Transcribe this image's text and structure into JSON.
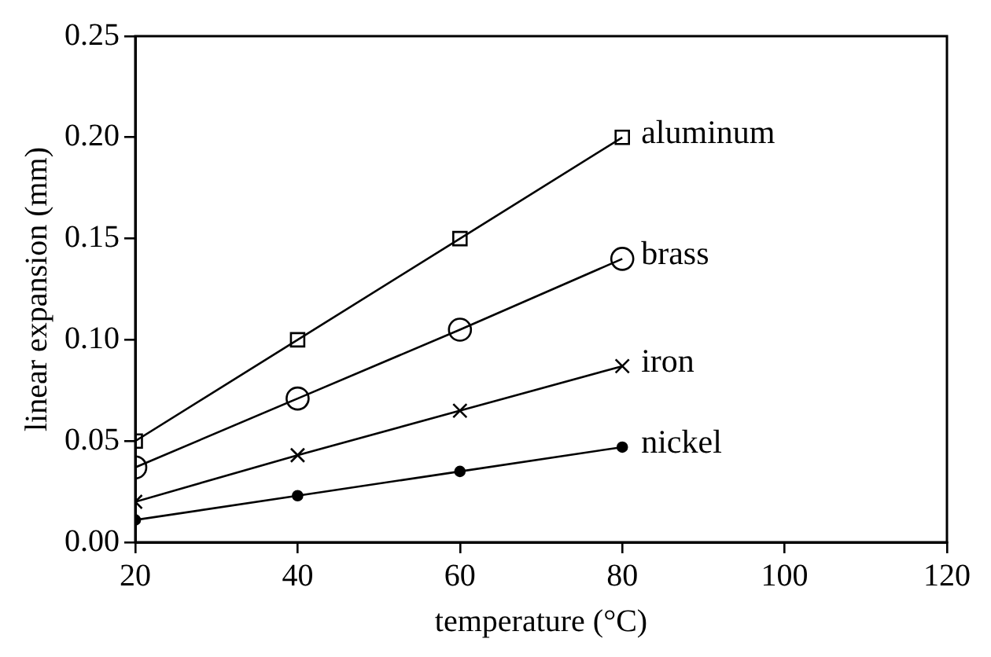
{
  "chart_data": {
    "type": "line",
    "xlabel": "temperature (°C)",
    "ylabel": "linear expansion (mm)",
    "x": [
      20,
      40,
      60,
      80
    ],
    "series": [
      {
        "name": "aluminum",
        "color": "#000000",
        "marker": "square",
        "values": [
          0.05,
          0.1,
          0.15,
          0.2
        ]
      },
      {
        "name": "brass",
        "color": "#000000",
        "marker": "circle",
        "values": [
          0.037,
          0.071,
          0.105,
          0.14
        ]
      },
      {
        "name": "iron",
        "color": "#000000",
        "marker": "cross",
        "values": [
          0.02,
          0.043,
          0.065,
          0.087
        ]
      },
      {
        "name": "nickel",
        "color": "#000000",
        "marker": "circle",
        "values": [
          0.011,
          0.023,
          0.035,
          0.047
        ]
      }
    ],
    "xlim": [
      20,
      120
    ],
    "xticks": [
      20,
      40,
      60,
      80,
      100,
      120
    ],
    "ylim": [
      0,
      0.25
    ],
    "yticks": [
      {
        "value": 0,
        "label": "0.00"
      },
      {
        "value": 0.05,
        "label": "0.05"
      },
      {
        "value": 0.1,
        "label": "0.10"
      },
      {
        "value": 0.15,
        "label": "0.15"
      },
      {
        "value": 0.2,
        "label": "0.20"
      },
      {
        "value": 0.25,
        "label": "0.25"
      }
    ],
    "grid": false,
    "legend": false,
    "line_style": "solid"
  }
}
